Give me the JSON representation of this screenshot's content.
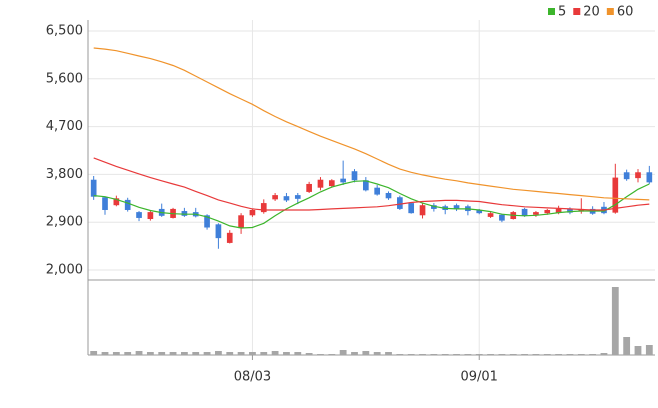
{
  "chart_data": {
    "type": "candlestick",
    "categories": [
      null,
      null,
      null,
      null,
      null,
      null,
      null,
      null,
      null,
      null,
      null,
      null,
      null,
      null,
      "08/03",
      null,
      null,
      null,
      null,
      null,
      null,
      null,
      null,
      null,
      null,
      null,
      null,
      null,
      null,
      null,
      null,
      null,
      null,
      null,
      "09/01",
      null,
      null,
      null,
      null,
      null,
      null,
      null,
      null,
      null,
      null,
      null,
      null,
      null,
      null,
      null
    ],
    "open": [
      3700,
      3370,
      3220,
      3320,
      3090,
      2960,
      3150,
      2980,
      3110,
      3090,
      3030,
      2860,
      2510,
      2790,
      3030,
      3090,
      3330,
      3390,
      3410,
      3470,
      3550,
      3580,
      3720,
      3860,
      3690,
      3550,
      3450,
      3370,
      3260,
      3030,
      3220,
      3200,
      3220,
      3200,
      3130,
      3000,
      3040,
      2960,
      3150,
      3040,
      3070,
      3080,
      3150,
      3100,
      3150,
      3190,
      3080,
      3840,
      3730,
      3840
    ],
    "high": [
      3770,
      3380,
      3400,
      3360,
      3110,
      3130,
      3250,
      3170,
      3170,
      3170,
      3050,
      2880,
      2750,
      3070,
      3150,
      3330,
      3450,
      3450,
      3450,
      3660,
      3750,
      3710,
      4060,
      3900,
      3750,
      3600,
      3480,
      3400,
      3270,
      3260,
      3260,
      3230,
      3250,
      3230,
      3150,
      3090,
      3060,
      3110,
      3170,
      3110,
      3150,
      3210,
      3180,
      3350,
      3200,
      3280,
      4000,
      3890,
      3900,
      3960
    ],
    "low": [
      3320,
      3040,
      3200,
      3100,
      2920,
      2930,
      3000,
      2970,
      3000,
      2990,
      2760,
      2400,
      2500,
      2680,
      3000,
      3060,
      3300,
      3280,
      3240,
      3450,
      3500,
      3550,
      3600,
      3650,
      3480,
      3400,
      3320,
      3130,
      3060,
      2970,
      3100,
      3050,
      3110,
      3030,
      3050,
      2980,
      2900,
      2950,
      3000,
      3000,
      3040,
      3050,
      3050,
      3060,
      3040,
      3050,
      3060,
      3680,
      3650,
      3620
    ],
    "close": [
      3380,
      3130,
      3350,
      3130,
      2980,
      3090,
      3020,
      3150,
      3020,
      3010,
      2800,
      2600,
      2700,
      3030,
      3130,
      3260,
      3410,
      3310,
      3340,
      3620,
      3700,
      3690,
      3650,
      3690,
      3500,
      3420,
      3350,
      3150,
      3070,
      3220,
      3150,
      3130,
      3150,
      3110,
      3070,
      3070,
      2930,
      3090,
      3020,
      3090,
      3130,
      3150,
      3080,
      3150,
      3060,
      3070,
      3740,
      3710,
      3840,
      3650
    ],
    "up_color": "#e8393a",
    "down_color": "#3f7fd9",
    "series": [
      {
        "name": "5",
        "color": "#3cb52c",
        "values": [
          3400,
          3380,
          3330,
          3260,
          3180,
          3120,
          3080,
          3060,
          3050,
          3050,
          3000,
          2920,
          2830,
          2790,
          2800,
          2880,
          3020,
          3150,
          3260,
          3360,
          3470,
          3560,
          3620,
          3670,
          3680,
          3620,
          3550,
          3440,
          3340,
          3260,
          3200,
          3160,
          3150,
          3150,
          3130,
          3100,
          3050,
          3030,
          3020,
          3030,
          3050,
          3080,
          3100,
          3110,
          3110,
          3110,
          3230,
          3380,
          3520,
          3620
        ]
      },
      {
        "name": "20",
        "color": "#e8393a",
        "values": [
          4110,
          4030,
          3950,
          3880,
          3810,
          3740,
          3680,
          3620,
          3560,
          3480,
          3400,
          3320,
          3260,
          3200,
          3150,
          3130,
          3130,
          3130,
          3130,
          3130,
          3140,
          3150,
          3160,
          3170,
          3180,
          3190,
          3210,
          3240,
          3270,
          3290,
          3300,
          3310,
          3310,
          3300,
          3290,
          3260,
          3230,
          3210,
          3190,
          3180,
          3170,
          3160,
          3150,
          3140,
          3130,
          3130,
          3160,
          3190,
          3220,
          3240
        ]
      },
      {
        "name": "60",
        "color": "#f0932b",
        "values": [
          6180,
          6160,
          6130,
          6080,
          6030,
          5980,
          5920,
          5850,
          5760,
          5650,
          5540,
          5430,
          5320,
          5220,
          5120,
          5000,
          4890,
          4790,
          4700,
          4610,
          4520,
          4440,
          4360,
          4280,
          4190,
          4090,
          3990,
          3900,
          3840,
          3790,
          3750,
          3710,
          3680,
          3640,
          3610,
          3580,
          3550,
          3520,
          3500,
          3480,
          3460,
          3440,
          3420,
          3400,
          3380,
          3360,
          3350,
          3340,
          3330,
          3320
        ]
      }
    ],
    "volume": [
      4,
      3,
      3,
      3,
      4,
      3,
      3,
      3,
      3,
      3,
      3,
      4,
      3,
      3,
      3,
      3,
      4,
      3,
      3,
      2,
      1,
      1,
      5,
      3,
      4,
      3,
      3,
      1,
      1,
      1,
      1,
      1,
      1,
      1,
      1,
      1,
      1,
      1,
      1,
      1,
      1,
      1,
      1,
      1,
      1,
      2,
      68,
      18,
      9,
      10
    ],
    "volume_color": "#a6a6a6",
    "ylim": [
      2000,
      6500
    ],
    "yticks": [
      {
        "value": 2000,
        "label": "2,000"
      },
      {
        "value": 2900,
        "label": "2,900"
      },
      {
        "value": 3800,
        "label": "3,800"
      },
      {
        "value": 4700,
        "label": "4,700"
      },
      {
        "value": 5600,
        "label": "5,600"
      },
      {
        "value": 6500,
        "label": "6,500"
      }
    ],
    "grid": true,
    "legend": "top-right"
  }
}
